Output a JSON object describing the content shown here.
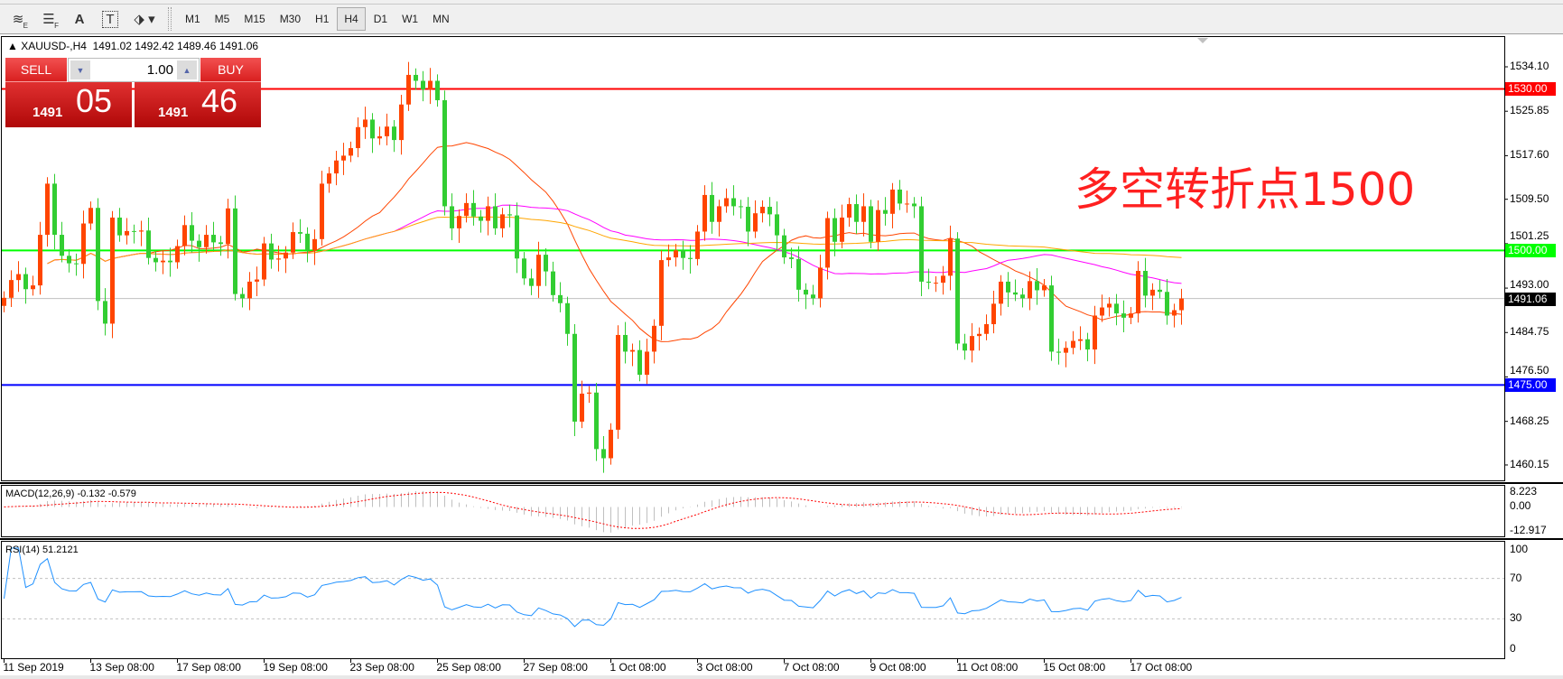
{
  "toolbar": {
    "icons": [
      "elliott-wave-icon",
      "fibonacci-icon",
      "text-icon",
      "text-label-icon",
      "arrows-icon"
    ],
    "icon_text": {
      "a": "A",
      "t": "T"
    },
    "timeframes": [
      "M1",
      "M5",
      "M15",
      "M30",
      "H1",
      "H4",
      "D1",
      "W1",
      "MN"
    ],
    "active_timeframe": "H4"
  },
  "header": {
    "symbol": "XAUUSD-,H4",
    "ohlc": "1491.02 1492.42 1489.46 1491.06"
  },
  "trade_panel": {
    "sell_label": "SELL",
    "buy_label": "BUY",
    "volume": "1.00",
    "sell_price_small": "1491",
    "sell_price_big": "05",
    "buy_price_small": "1491",
    "buy_price_big": "46"
  },
  "annotation": "多空转折点1500",
  "price_axis": [
    "1534.10",
    "1525.85",
    "1517.60",
    "1509.50",
    "1501.25",
    "1493.00",
    "1484.75",
    "1476.50",
    "1468.25",
    "1460.15"
  ],
  "levels": [
    {
      "price": 1530.0,
      "label": "1530.00",
      "color": "#ff0000"
    },
    {
      "price": 1500.0,
      "label": "1500.00",
      "color": "#00ff00"
    },
    {
      "price": 1475.0,
      "label": "1475.00",
      "color": "#0000ff"
    }
  ],
  "current_price": {
    "price": 1491.06,
    "label": "1491.06"
  },
  "macd": {
    "label": "MACD(12,26,9) -0.132 -0.579",
    "axis": [
      "8.223",
      "0.00",
      "-12.917"
    ],
    "max": 8.223,
    "min": -12.917
  },
  "rsi": {
    "label": "RSI(14) 51.2121",
    "axis": [
      "100",
      "70",
      "30",
      "0"
    ],
    "levels": [
      70,
      30
    ]
  },
  "time_axis": [
    "11 Sep 2019",
    "13 Sep 08:00",
    "17 Sep 08:00",
    "19 Sep 08:00",
    "23 Sep 08:00",
    "25 Sep 08:00",
    "27 Sep 08:00",
    "1 Oct 08:00",
    "3 Oct 08:00",
    "7 Oct 08:00",
    "9 Oct 08:00",
    "11 Oct 08:00",
    "15 Oct 08:00",
    "17 Oct 08:00"
  ],
  "colors": {
    "bull": "#ff4500",
    "bear": "#32cd32",
    "ma_fast": "#ff4500",
    "ma_mid": "#ff00ff",
    "ma_slow": "#ffa500",
    "macd_hist": "#c0c0c0",
    "macd_signal": "#ff0000",
    "rsi": "#1e90ff"
  },
  "chart_data": {
    "type": "candlestick",
    "symbol": "XAUUSD-",
    "timeframe": "H4",
    "ylim": [
      1458,
      1537
    ],
    "close": [
      1491.2,
      1494.5,
      1495.6,
      1492.8,
      1493.5,
      1502.9,
      1512.4,
      1502.9,
      1499.0,
      1497.6,
      1497.5,
      1505.0,
      1507.9,
      1490.6,
      1486.4,
      1506.1,
      1502.8,
      1503.6,
      1503.5,
      1503.7,
      1498.6,
      1497.8,
      1498.1,
      1497.8,
      1500.8,
      1504.7,
      1501.8,
      1500.6,
      1502.9,
      1501.5,
      1501.2,
      1507.8,
      1491.9,
      1491.1,
      1494.2,
      1494.6,
      1501.3,
      1498.3,
      1498.5,
      1499.6,
      1503.4,
      1503.1,
      1500.0,
      1502.1,
      1512.4,
      1514.3,
      1516.7,
      1517.6,
      1519.0,
      1522.9,
      1524.3,
      1520.8,
      1521.2,
      1523.0,
      1520.5,
      1527.1,
      1532.6,
      1531.5,
      1529.9,
      1531.5,
      1527.9,
      1508.2,
      1504.1,
      1506.4,
      1508.8,
      1506.3,
      1505.5,
      1508.2,
      1504.1,
      1506.7,
      1506.5,
      1498.5,
      1494.8,
      1493.4,
      1499.2,
      1496.1,
      1491.7,
      1490.2,
      1484.5,
      1468.2,
      1473.4,
      1473.6,
      1463.1,
      1461.4,
      1466.7,
      1484.3,
      1481.2,
      1481.5,
      1476.9,
      1481.2,
      1486.0,
      1498.2,
      1498.7,
      1500.0,
      1498.6,
      1498.4,
      1503.5,
      1510.3,
      1505.3,
      1508.2,
      1509.7,
      1508.2,
      1508.1,
      1503.5,
      1506.9,
      1508.1,
      1506.7,
      1502.8,
      1498.7,
      1498.4,
      1492.7,
      1491.8,
      1491.1,
      1496.8,
      1506.0,
      1501.6,
      1506.1,
      1508.6,
      1505.3,
      1508.2,
      1501.6,
      1507.5,
      1506.8,
      1511.3,
      1508.7,
      1508.7,
      1508.2,
      1494.2,
      1494.0,
      1494.0,
      1495.3,
      1502.2,
      1482.7,
      1481.4,
      1484.1,
      1484.5,
      1486.3,
      1490.1,
      1494.2,
      1492.2,
      1491.8,
      1491.1,
      1494.3,
      1492.6,
      1493.5,
      1481.2,
      1481.0,
      1481.9,
      1483.2,
      1483.5,
      1481.6,
      1487.9,
      1489.4,
      1490.1,
      1488.3,
      1487.5,
      1488.3,
      1496.2,
      1491.6,
      1492.7,
      1492.3,
      1487.9,
      1488.9,
      1491.06
    ]
  }
}
